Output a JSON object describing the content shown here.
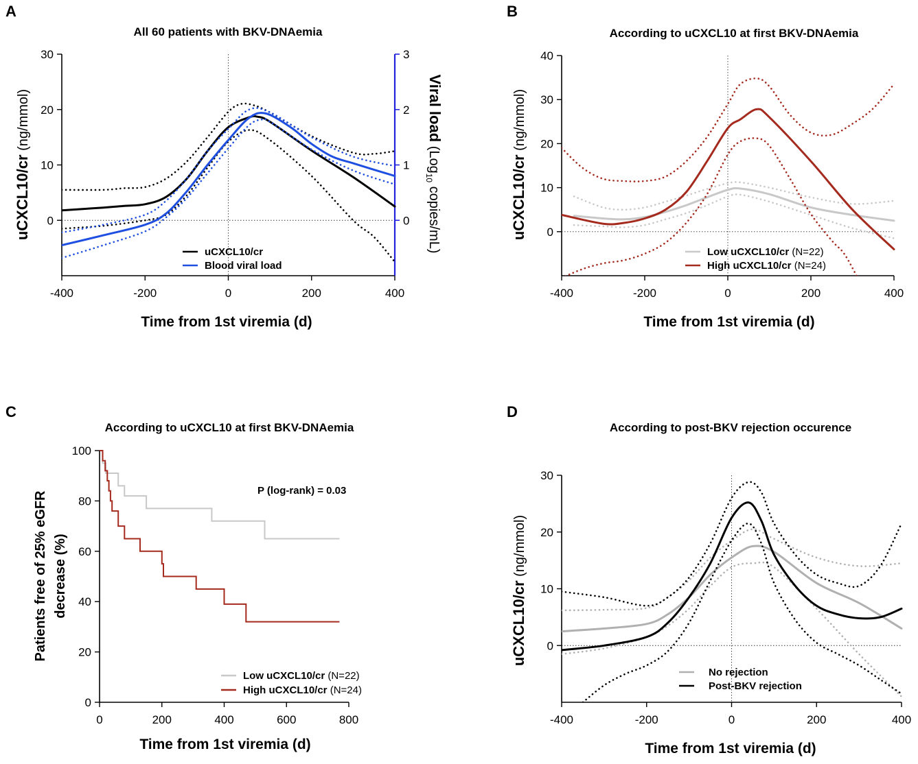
{
  "chart_data": [
    {
      "panel": "A",
      "type": "line",
      "title": "All 60 patients with BKV-DNAemia",
      "xlabel": "Time from 1st viremia (d)",
      "ylabel_bold": "uCXCL10/cr",
      "ylabel_unit": "(ng/mmol)",
      "y2label_bold": "Viral load",
      "y2label_pre": "(Log",
      "y2label_sub": "10",
      "y2label_post": " copies/mL)",
      "xlim": [
        -400,
        400
      ],
      "ylim": [
        -10,
        30
      ],
      "y2lim": [
        -1,
        3
      ],
      "xticks": [
        -400,
        -200,
        0,
        200,
        400
      ],
      "yticks": [
        0,
        10,
        20,
        30
      ],
      "y2ticks": [
        0,
        1,
        2,
        3
      ],
      "colors": {
        "uCXCL10": "#000000",
        "viral": "#1f4fe0",
        "y2axis": "#2222dd"
      },
      "legend": {
        "uCXCL10": "uCXCL10/cr",
        "viral": "Blood viral load"
      },
      "series": [
        {
          "name": "uCXCL10/cr",
          "role": "main",
          "axis": "left",
          "color": "#000000",
          "style": "solid",
          "x": [
            -400,
            -300,
            -250,
            -200,
            -150,
            -100,
            -50,
            0,
            50,
            70,
            100,
            200,
            300,
            400
          ],
          "y": [
            1.8,
            2.3,
            2.6,
            2.9,
            4.2,
            7.5,
            12.5,
            16.8,
            18.6,
            18.7,
            17.8,
            12.6,
            7.8,
            2.5
          ]
        },
        {
          "name": "uCXCL10/cr upper 95% CI",
          "role": "ci",
          "axis": "left",
          "color": "#000000",
          "style": "dotted",
          "x": [
            -400,
            -300,
            -250,
            -200,
            -150,
            -100,
            -50,
            0,
            30,
            60,
            100,
            200,
            300,
            350,
            400
          ],
          "y": [
            5.5,
            5.5,
            5.8,
            6.0,
            7.5,
            10.6,
            15.0,
            19.6,
            21.0,
            20.8,
            19.5,
            15.2,
            12.2,
            12.0,
            12.5
          ]
        },
        {
          "name": "uCXCL10/cr lower 95% CI",
          "role": "ci",
          "axis": "left",
          "color": "#000000",
          "style": "dotted",
          "x": [
            -400,
            -300,
            -200,
            -150,
            -100,
            -50,
            0,
            50,
            100,
            200,
            300,
            350,
            400
          ],
          "y": [
            -1.5,
            -1.0,
            0.0,
            1.0,
            4.5,
            9.5,
            14.2,
            16.3,
            14.5,
            8.0,
            0.0,
            -3.0,
            -7.5
          ]
        },
        {
          "name": "Blood viral load",
          "role": "main",
          "axis": "right",
          "color": "#1f4fe0",
          "style": "solid",
          "x": [
            -400,
            -300,
            -200,
            -150,
            -100,
            -50,
            0,
            50,
            90,
            150,
            200,
            250,
            300,
            400
          ],
          "y": [
            -0.45,
            -0.27,
            -0.08,
            0.12,
            0.52,
            1.0,
            1.45,
            1.85,
            1.93,
            1.68,
            1.38,
            1.15,
            1.03,
            0.8
          ]
        },
        {
          "name": "Viral load upper 95% CI",
          "role": "ci",
          "axis": "right",
          "color": "#1f4fe0",
          "style": "dotted",
          "x": [
            -400,
            -300,
            -200,
            -150,
            -100,
            -50,
            0,
            50,
            100,
            200,
            300,
            400
          ],
          "y": [
            -0.22,
            -0.08,
            0.1,
            0.35,
            0.75,
            1.25,
            1.65,
            2.0,
            1.95,
            1.5,
            1.15,
            0.98
          ]
        },
        {
          "name": "Viral load lower 95% CI",
          "role": "ci",
          "axis": "right",
          "color": "#1f4fe0",
          "style": "dotted",
          "x": [
            -400,
            -300,
            -200,
            -150,
            -100,
            -50,
            0,
            50,
            80,
            100,
            200,
            300,
            400
          ],
          "y": [
            -0.68,
            -0.45,
            -0.2,
            0.05,
            0.4,
            0.85,
            1.3,
            1.72,
            1.82,
            1.78,
            1.28,
            0.9,
            0.65
          ]
        }
      ]
    },
    {
      "panel": "B",
      "type": "line",
      "title": "According to uCXCL10 at first BKV-DNAemia",
      "xlabel": "Time from 1st viremia (d)",
      "ylabel_bold": "uCXCL10/cr",
      "ylabel_unit": "(ng/mmol)",
      "xlim": [
        -400,
        400
      ],
      "ylim": [
        -10,
        40
      ],
      "xticks": [
        -400,
        -200,
        0,
        200,
        400
      ],
      "yticks": [
        0,
        10,
        20,
        30,
        40
      ],
      "colors": {
        "low": "#c8c8c8",
        "high": "#a52a1e"
      },
      "legend": {
        "low": "Low uCXCL10/cr",
        "low_n": "(N=22)",
        "high": "High uCXCL10/cr",
        "high_n": "(N=24)"
      },
      "series": [
        {
          "name": "High uCXCL10/cr",
          "role": "main",
          "color": "#a52a1e",
          "style": "solid",
          "x": [
            -400,
            -300,
            -250,
            -200,
            -150,
            -100,
            -50,
            0,
            30,
            70,
            100,
            200,
            300,
            400
          ],
          "y": [
            3.8,
            1.8,
            2.0,
            3.0,
            5.0,
            9.0,
            16.0,
            23.5,
            25.5,
            27.8,
            26.0,
            16.0,
            5.0,
            -4.0
          ]
        },
        {
          "name": "High upper 95% CI",
          "role": "ci",
          "color": "#a52a1e",
          "style": "dotted",
          "x": [
            -400,
            -350,
            -300,
            -250,
            -200,
            -150,
            -100,
            -50,
            0,
            30,
            70,
            100,
            150,
            200,
            250,
            300,
            350,
            400
          ],
          "y": [
            19.0,
            14.5,
            12.0,
            11.5,
            11.5,
            12.5,
            16.0,
            21.5,
            29.0,
            33.5,
            34.8,
            33.0,
            26.5,
            22.5,
            22.0,
            24.5,
            28.0,
            33.5
          ]
        },
        {
          "name": "High lower 95% CI",
          "role": "ci",
          "color": "#a52a1e",
          "style": "dotted",
          "x": [
            -400,
            -350,
            -300,
            -250,
            -200,
            -150,
            -100,
            -50,
            0,
            30,
            70,
            100,
            150,
            200,
            250,
            280,
            310
          ],
          "y": [
            -10.5,
            -8.5,
            -7.2,
            -6.5,
            -5.0,
            -2.5,
            2.0,
            8.5,
            17.5,
            20.5,
            21.2,
            19.5,
            12.0,
            4.0,
            -2.0,
            -5.0,
            -10.0
          ]
        },
        {
          "name": "Low uCXCL10/cr",
          "role": "main",
          "color": "#c8c8c8",
          "style": "solid",
          "x": [
            -370,
            -300,
            -250,
            -200,
            -150,
            -100,
            -50,
            0,
            30,
            100,
            200,
            300,
            400
          ],
          "y": [
            3.6,
            3.0,
            2.8,
            3.3,
            4.5,
            6.0,
            7.8,
            9.5,
            9.8,
            8.5,
            5.5,
            3.8,
            2.5
          ]
        },
        {
          "name": "Low upper 95% CI",
          "role": "ci",
          "color": "#c8c8c8",
          "style": "dotted",
          "x": [
            -370,
            -300,
            -250,
            -200,
            -150,
            -100,
            -50,
            0,
            30,
            100,
            200,
            300,
            400
          ],
          "y": [
            8.0,
            5.5,
            5.0,
            5.5,
            6.8,
            8.2,
            9.7,
            11.0,
            11.2,
            10.0,
            7.8,
            6.3,
            7.0
          ]
        },
        {
          "name": "Low lower 95% CI",
          "role": "ci",
          "color": "#c8c8c8",
          "style": "dotted",
          "x": [
            -370,
            -300,
            -250,
            -200,
            -150,
            -100,
            -50,
            0,
            30,
            100,
            200,
            300,
            400
          ],
          "y": [
            1.5,
            1.2,
            1.0,
            1.5,
            2.8,
            4.2,
            6.0,
            8.0,
            8.4,
            6.8,
            3.8,
            0.8,
            -1.5
          ]
        }
      ]
    },
    {
      "panel": "C",
      "type": "step",
      "title": "According to uCXCL10 at first BKV-DNAemia",
      "xlabel": "Time from 1st viremia (d)",
      "ylabel_line1": "Patients free of 25% eGFR",
      "ylabel_line2": "decrease (%)",
      "annotation": "P (log-rank) = 0.03",
      "xlim": [
        0,
        800
      ],
      "ylim": [
        0,
        100
      ],
      "xticks": [
        0,
        200,
        400,
        600,
        800
      ],
      "yticks": [
        0,
        20,
        40,
        60,
        80,
        100
      ],
      "colors": {
        "low": "#c8c8c8",
        "high": "#a52a1e"
      },
      "legend": {
        "low": "Low uCXCL10/cr",
        "low_n": "(N=22)",
        "high": "High uCXCL10/cr",
        "high_n": "(N=24)"
      },
      "series": [
        {
          "name": "Low uCXCL10/cr",
          "color": "#c8c8c8",
          "x": [
            0,
            10,
            20,
            30,
            60,
            80,
            150,
            360,
            530,
            770
          ],
          "y": [
            100,
            95,
            91,
            91,
            86,
            82,
            77,
            72,
            65,
            65
          ]
        },
        {
          "name": "High uCXCL10/cr",
          "color": "#a52a1e",
          "x": [
            0,
            10,
            18,
            25,
            30,
            35,
            40,
            60,
            80,
            130,
            200,
            205,
            310,
            400,
            470,
            770
          ],
          "y": [
            100,
            96,
            92,
            88,
            84,
            80,
            76,
            70,
            65,
            60,
            55,
            50,
            45,
            39,
            32,
            32
          ]
        }
      ]
    },
    {
      "panel": "D",
      "type": "line",
      "title": "According to post-BKV rejection occurence",
      "xlabel": "Time from 1st viremia (d)",
      "ylabel_bold": "uCXCL10/cr",
      "ylabel_unit": "(ng/mmol)",
      "xlim": [
        -400,
        400
      ],
      "ylim": [
        -10,
        30
      ],
      "xticks": [
        -400,
        -200,
        0,
        200,
        400
      ],
      "yticks": [
        0,
        10,
        20,
        30
      ],
      "colors": {
        "no": "#b0b0b0",
        "post": "#000000"
      },
      "legend": {
        "no": "No rejection",
        "post": "Post-BKV rejection"
      },
      "series": [
        {
          "name": "No rejection",
          "role": "main",
          "color": "#b0b0b0",
          "style": "solid",
          "x": [
            -400,
            -300,
            -200,
            -150,
            -100,
            -50,
            0,
            50,
            100,
            200,
            300,
            400
          ],
          "y": [
            2.5,
            3.0,
            3.8,
            5.5,
            8.5,
            12.5,
            15.5,
            17.5,
            16.5,
            11.0,
            7.5,
            3.0
          ]
        },
        {
          "name": "No rejection upper 95% CI",
          "role": "ci",
          "color": "#b0b0b0",
          "style": "dotted",
          "x": [
            -400,
            -300,
            -200,
            -150,
            -100,
            -50,
            0,
            50,
            100,
            200,
            300,
            400
          ],
          "y": [
            6.2,
            6.3,
            6.6,
            8.5,
            11.5,
            15.5,
            18.5,
            20.5,
            18.8,
            15.5,
            14.0,
            14.5
          ]
        },
        {
          "name": "No rejection lower 95% CI",
          "role": "ci",
          "color": "#b0b0b0",
          "style": "dotted",
          "x": [
            -400,
            -300,
            -200,
            -150,
            -100,
            -50,
            0,
            50,
            100,
            200,
            300,
            400
          ],
          "y": [
            -1.5,
            -0.5,
            1.5,
            3.5,
            6.5,
            10.5,
            13.8,
            14.5,
            13.8,
            6.5,
            -1.5,
            -9.0
          ]
        },
        {
          "name": "Post-BKV rejection",
          "role": "main",
          "color": "#000000",
          "style": "solid",
          "x": [
            -400,
            -300,
            -200,
            -150,
            -100,
            -50,
            0,
            40,
            70,
            100,
            150,
            200,
            250,
            300,
            350,
            400
          ],
          "y": [
            -0.8,
            0.0,
            1.5,
            4.0,
            8.5,
            14.5,
            22.5,
            25.2,
            22.0,
            16.0,
            10.5,
            7.0,
            5.5,
            4.8,
            5.0,
            6.5
          ]
        },
        {
          "name": "Post-BKV upper 95% CI",
          "role": "ci",
          "color": "#000000",
          "style": "dotted",
          "x": [
            -400,
            -300,
            -200,
            -150,
            -100,
            -50,
            0,
            40,
            70,
            100,
            150,
            200,
            250,
            300,
            350,
            400
          ],
          "y": [
            9.5,
            8.5,
            7.0,
            8.5,
            12.0,
            18.0,
            26.0,
            28.8,
            27.0,
            21.5,
            16.0,
            12.5,
            11.0,
            10.5,
            14.0,
            21.5
          ]
        },
        {
          "name": "Post-BKV lower 95% CI",
          "role": "ci",
          "color": "#000000",
          "style": "dotted",
          "x": [
            -350,
            -300,
            -250,
            -200,
            -150,
            -100,
            -50,
            0,
            40,
            70,
            100,
            150,
            200,
            250,
            300,
            350,
            400
          ],
          "y": [
            -10.0,
            -7.0,
            -5.0,
            -3.5,
            -1.0,
            4.0,
            11.5,
            18.5,
            21.5,
            18.0,
            11.0,
            4.5,
            0.5,
            -1.5,
            -3.5,
            -6.0,
            -8.5
          ]
        }
      ]
    }
  ]
}
